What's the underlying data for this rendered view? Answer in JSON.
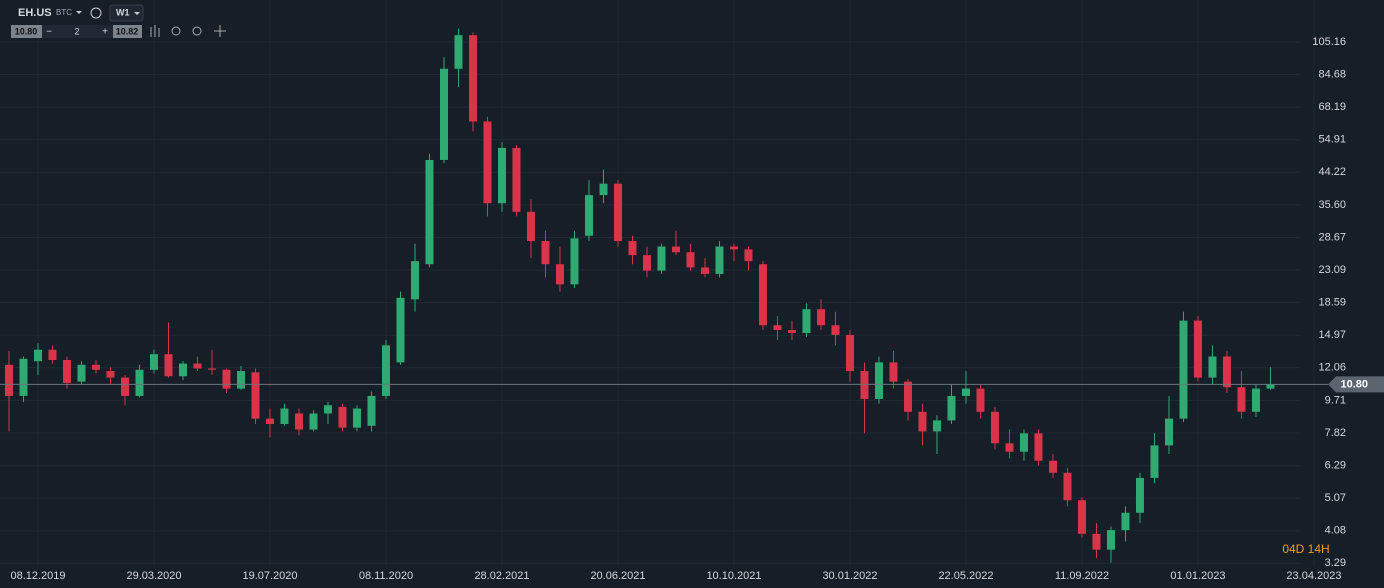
{
  "toolbar": {
    "symbol": "EH.US",
    "exchange": "BTC",
    "interval": "W1",
    "bid": "10.80",
    "quantity": "2",
    "ask": "10.82"
  },
  "chart_data": {
    "type": "candlestick",
    "log_scale": true,
    "grid": true,
    "up_color": "#2faa72",
    "down_color": "#d9344a",
    "xlim": [
      -0.62,
      94.83
    ],
    "xticks": [
      {
        "value": 2,
        "label": "08.12.2019"
      },
      {
        "value": 10,
        "label": "29.03.2020"
      },
      {
        "value": 18,
        "label": "19.07.2020"
      },
      {
        "value": 26,
        "label": "08.11.2020"
      },
      {
        "value": 34,
        "label": "28.02.2021"
      },
      {
        "value": 42,
        "label": "20.06.2021"
      },
      {
        "value": 50,
        "label": "10.10.2021"
      },
      {
        "value": 58,
        "label": "30.01.2022"
      },
      {
        "value": 66,
        "label": "22.05.2022"
      },
      {
        "value": 74,
        "label": "11.09.2022"
      },
      {
        "value": 82,
        "label": "01.01.2023"
      },
      {
        "value": 90,
        "label": "23.04.2023"
      }
    ],
    "ylim": [
      2.79,
      139
    ],
    "yticks": [
      105.16,
      84.68,
      68.19,
      54.91,
      44.22,
      {
        "value": 35.6,
        "label": "35.60"
      },
      28.67,
      23.09,
      18.59,
      14.97,
      12.06,
      9.71,
      7.82,
      6.29,
      5.07,
      4.08,
      3.29
    ],
    "last_price": {
      "value": 10.8,
      "label": "10.80"
    },
    "countdown": "04D 14H",
    "open": [
      12.3,
      10.0,
      12.6,
      13.6,
      12.7,
      11.0,
      12.3,
      11.8,
      11.3,
      10.0,
      11.9,
      13.2,
      11.4,
      12.4,
      12.0,
      11.9,
      10.5,
      11.7,
      8.6,
      8.3,
      8.9,
      8.0,
      8.9,
      9.3,
      8.1,
      8.2,
      10.0,
      12.5,
      19.0,
      24.0,
      48.0,
      88.0,
      110.0,
      62.0,
      36.0,
      52.0,
      34.0,
      28.0,
      24.0,
      21.0,
      29.0,
      38.0,
      41.0,
      28.0,
      25.5,
      23.0,
      27.0,
      26.0,
      23.5,
      22.5,
      27.0,
      26.5,
      24.0,
      16.0,
      15.5,
      15.2,
      17.8,
      16.0,
      15.0,
      11.8,
      9.8,
      12.5,
      11.0,
      9.0,
      7.9,
      8.5,
      10.0,
      10.5,
      9.0,
      7.3,
      6.9,
      7.8,
      6.5,
      6.0,
      5.0,
      4.0,
      3.6,
      4.1,
      4.6,
      5.8,
      7.2,
      8.6,
      16.5,
      11.3,
      13.0,
      10.6,
      9.0,
      10.5
    ],
    "high": [
      13.5,
      13.0,
      14.2,
      14.0,
      13.0,
      12.6,
      12.7,
      12.1,
      11.5,
      12.3,
      13.6,
      16.3,
      12.6,
      13.0,
      13.6,
      12.0,
      12.2,
      12.0,
      9.2,
      9.5,
      9.2,
      9.1,
      9.6,
      9.5,
      9.4,
      10.3,
      14.5,
      20.0,
      27.5,
      50.0,
      95.0,
      115.0,
      112.0,
      64.0,
      54.0,
      53.0,
      37.0,
      30.0,
      27.0,
      30.0,
      42.0,
      45.0,
      42.0,
      29.0,
      27.0,
      27.5,
      30.0,
      27.5,
      25.0,
      28.0,
      27.5,
      27.0,
      24.5,
      17.0,
      16.5,
      18.5,
      19.0,
      17.5,
      15.5,
      12.5,
      13.0,
      13.5,
      11.2,
      9.5,
      8.8,
      10.8,
      11.8,
      10.8,
      9.3,
      8.0,
      8.0,
      8.0,
      6.8,
      6.2,
      5.1,
      4.3,
      4.2,
      4.8,
      6.0,
      7.8,
      10.0,
      17.5,
      17.0,
      14.0,
      13.5,
      11.8,
      10.8,
      12.1
    ],
    "low": [
      7.9,
      9.6,
      11.5,
      12.4,
      10.5,
      10.8,
      11.6,
      10.8,
      9.4,
      9.9,
      11.6,
      11.3,
      11.1,
      11.8,
      11.5,
      10.2,
      10.4,
      8.3,
      7.6,
      8.2,
      7.7,
      7.9,
      8.3,
      7.9,
      7.9,
      7.9,
      9.8,
      12.3,
      17.5,
      23.5,
      47.0,
      78.0,
      58.0,
      33.0,
      34.0,
      33.0,
      25.0,
      22.0,
      20.0,
      20.5,
      28.0,
      36.0,
      27.0,
      24.0,
      22.0,
      22.5,
      25.5,
      23.0,
      22.0,
      22.0,
      24.5,
      23.0,
      15.5,
      14.5,
      14.5,
      14.8,
      15.5,
      14.0,
      11.0,
      7.8,
      9.5,
      10.5,
      8.5,
      7.2,
      6.8,
      8.3,
      9.5,
      8.6,
      7.0,
      6.6,
      6.5,
      6.3,
      5.8,
      4.8,
      3.9,
      3.4,
      3.3,
      3.8,
      4.3,
      5.6,
      6.8,
      8.4,
      11.0,
      10.8,
      10.2,
      8.6,
      8.7,
      10.4
    ],
    "close": [
      10.0,
      12.8,
      13.6,
      12.7,
      10.9,
      12.3,
      11.9,
      11.3,
      10.0,
      11.9,
      13.2,
      11.4,
      12.4,
      12.0,
      11.9,
      10.5,
      11.8,
      8.6,
      8.3,
      9.2,
      8.0,
      8.9,
      9.4,
      8.1,
      9.2,
      10.0,
      14.0,
      19.2,
      24.5,
      48.0,
      88.0,
      110.0,
      62.0,
      36.0,
      52.0,
      34.0,
      28.0,
      24.0,
      21.0,
      28.5,
      38.0,
      41.0,
      28.0,
      25.5,
      23.0,
      27.0,
      26.0,
      23.5,
      22.5,
      27.0,
      26.5,
      24.5,
      16.0,
      15.5,
      15.2,
      17.8,
      16.0,
      15.0,
      11.8,
      9.8,
      12.5,
      11.0,
      9.0,
      7.9,
      8.5,
      10.0,
      10.5,
      9.0,
      7.3,
      6.9,
      7.8,
      6.5,
      6.0,
      5.0,
      4.0,
      3.6,
      4.1,
      4.6,
      5.8,
      7.2,
      8.6,
      16.5,
      11.3,
      13.0,
      10.6,
      9.0,
      10.5,
      10.8
    ]
  }
}
